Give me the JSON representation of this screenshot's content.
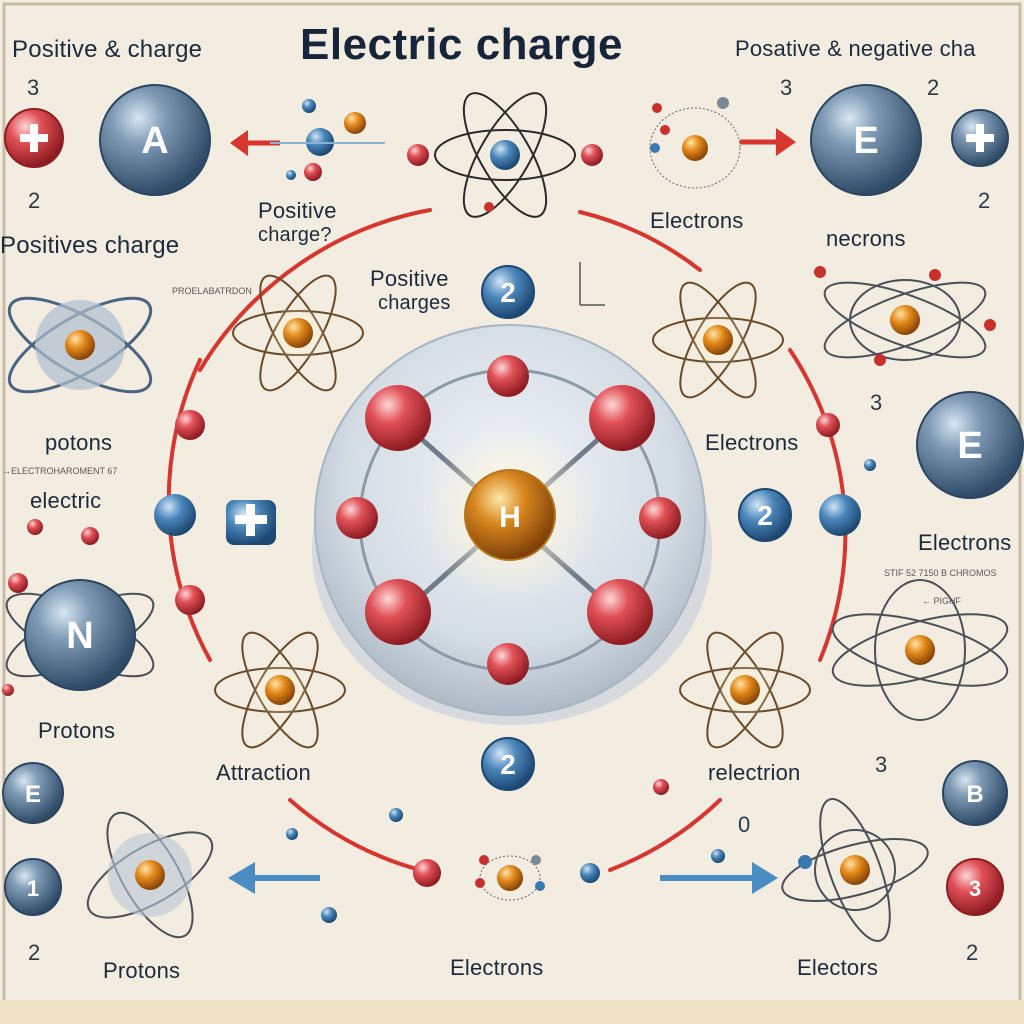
{
  "title": "Electric charge",
  "labels": {
    "positive_charge_tl": "Positive & charge",
    "pos_neg_tr": "Posative & negative cha",
    "positives_charge": "Positives charge",
    "positive_charge_mid": "Positive",
    "positive_charge_mid2": "charge?",
    "positive_charges_inner": "Positive",
    "positive_charges_inner2": "charges",
    "electrons_top": "Electrons",
    "necrons": "necrons",
    "potons": "potons",
    "electric": "electric",
    "electrons_right_mid": "Electrons",
    "electrons_right_cut": "Electrons",
    "protons_left": "Protons",
    "attraction": "Attraction",
    "relectrion": "relectrion",
    "protons_bottom": "Protons",
    "electrons_bottom": "Electrons",
    "electors_bottom": "Electors"
  },
  "numbers": {
    "n_tl_3": "3",
    "n_tl_2": "2",
    "n_tr_3": "3",
    "n_tr_2a": "2",
    "n_tr_2b": "2",
    "n_r_3": "3",
    "n_br_3": "3",
    "n_bot_0": "0",
    "n_bl_2": "2",
    "n_br_2": "2"
  },
  "balls": {
    "A": "A",
    "E_top": "E",
    "E_right": "E",
    "N": "N",
    "E_bl": "E",
    "B": "B",
    "b_bl": "1",
    "b_br": "3",
    "center": "H",
    "two_top": "2",
    "two_right": "2",
    "two_bottom": "2",
    "plus": "+"
  },
  "tiny_text": {
    "t1": "PROELABATRDON",
    "t2": "→ELECTROHAROMENT 67",
    "t3": "STIF 52 7150 B CHROMOS",
    "t4": "← PIGHF"
  },
  "colors": {
    "background": "#f3ece0",
    "red_charge": "#d23a3e",
    "blue_charge": "#3a78b0",
    "orbit": "#6a4a28",
    "nucleus": "#e0820f",
    "arrow_red": "#d8352e",
    "arrow_blue": "#4a8cc4"
  }
}
